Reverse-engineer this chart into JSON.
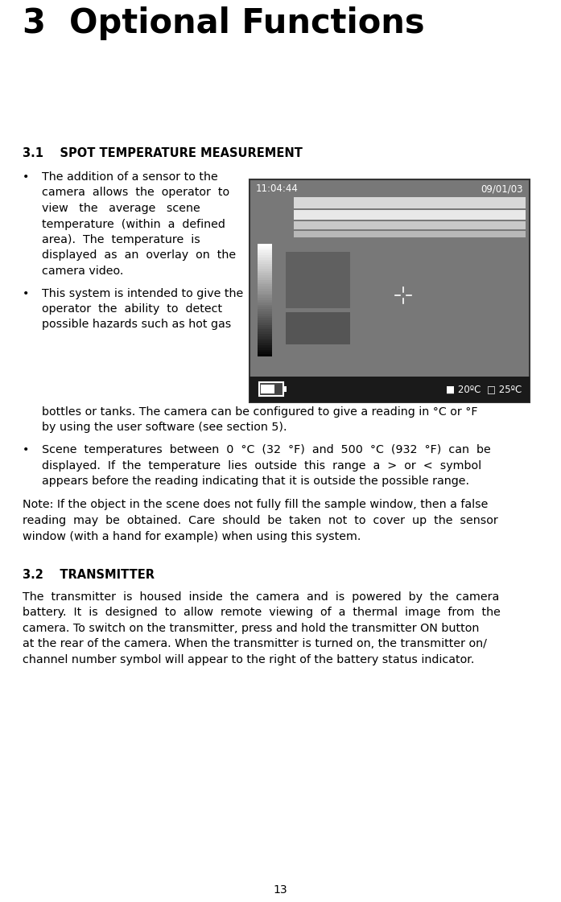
{
  "title": "3  Optional Functions",
  "bg_color": "#ffffff",
  "text_color": "#000000",
  "page_number": "13",
  "section_31_heading": "3.1    SPOT TEMPERATURE MEASUREMENT",
  "section_32_heading": "3.2    TRANSMITTER",
  "bullet1_lines": [
    "The addition of a sensor to the",
    "camera  allows  the  operator  to",
    "view   the   average   scene",
    "temperature  (within  a  defined",
    "area).  The  temperature  is",
    "displayed  as  an  overlay  on  the",
    "camera video."
  ],
  "bullet2_lines": [
    "This system is intended to give the",
    "operator  the  ability  to  detect",
    "possible hazards such as hot gas"
  ],
  "bullet2_cont_line1": "bottles or tanks. The camera can be configured to give a reading in °C or °F",
  "bullet2_cont_line2": "by using the user software (see section 5).",
  "bullet3_lines": [
    "Scene  temperatures  between  0  °C  (32  °F)  and  500  °C  (932  °F)  can  be",
    "displayed.  If  the  temperature  lies  outside  this  range  a  >  or  <  symbol",
    "appears before the reading indicating that it is outside the possible range."
  ],
  "note_lines": [
    "Note: If the object in the scene does not fully fill the sample window, then a false",
    "reading  may  be  obtained.  Care  should  be  taken  not  to  cover  up  the  sensor",
    "window (with a hand for example) when using this system."
  ],
  "s32_lines": [
    "The  transmitter  is  housed  inside  the  camera  and  is  powered  by  the  camera",
    "battery.  It  is  designed  to  allow  remote  viewing  of  a  thermal  image  from  the",
    "camera. To switch on the transmitter, press and hold the transmitter ON button",
    "at the rear of the camera. When the transmitter is turned on, the transmitter on/",
    "channel number symbol will appear to the right of the battery status indicator."
  ],
  "img_timestamp": "11:04:44",
  "img_date": "09/01/03",
  "img_temp": "■ 20ºC  □ 25ºC"
}
